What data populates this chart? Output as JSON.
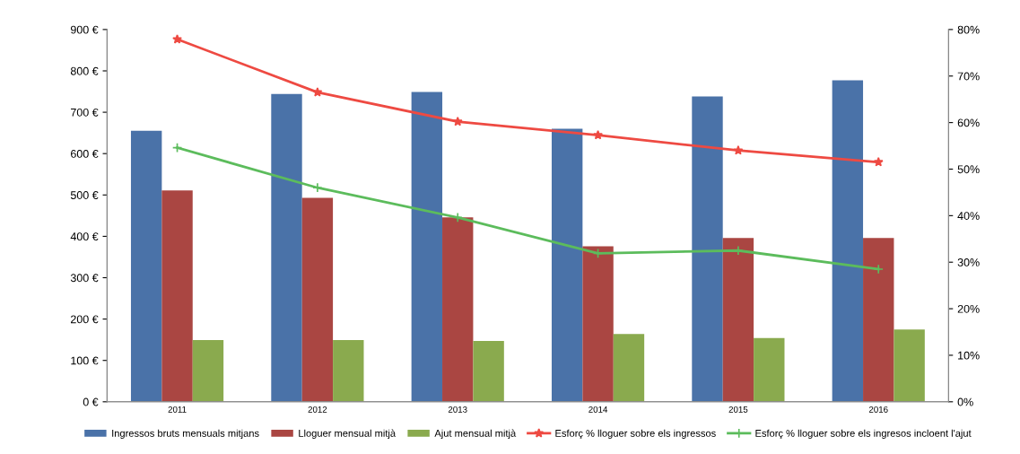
{
  "chart_data": {
    "type": "bar",
    "categories": [
      "2011",
      "2012",
      "2013",
      "2014",
      "2015",
      "2016"
    ],
    "series": [
      {
        "name": "Ingressos bruts mensuals mitjans",
        "color": "#4a72a8",
        "values": [
          655,
          744,
          749,
          660,
          738,
          777
        ]
      },
      {
        "name": "Lloguer mensual mitjà",
        "color": "#aa4642",
        "values": [
          511,
          493,
          446,
          376,
          396,
          396
        ]
      },
      {
        "name": "Ajut mensual mitjà",
        "color": "#8aaa4e",
        "values": [
          149,
          149,
          147,
          164,
          154,
          175
        ]
      },
      {
        "name": "Esforç % lloguer sobre els ingressos",
        "type": "line",
        "axis": "y2",
        "marker": "star",
        "color": "#ee4a42",
        "values": [
          77.9,
          66.5,
          60.2,
          57.3,
          54.0,
          51.5
        ]
      },
      {
        "name": "Esforç % lloguer sobre els ingresos incloent l'ajut",
        "type": "line",
        "axis": "y2",
        "marker": "cross",
        "color": "#5cbc5c",
        "values": [
          54.6,
          46.0,
          39.6,
          31.9,
          32.5,
          28.5
        ]
      }
    ],
    "ylim": [
      0,
      900
    ],
    "yticks": [
      {
        "value": 0,
        "label": "0 €"
      },
      {
        "value": 100,
        "label": "100 €"
      },
      {
        "value": 200,
        "label": "200 €"
      },
      {
        "value": 300,
        "label": "300 €"
      },
      {
        "value": 400,
        "label": "400 €"
      },
      {
        "value": 500,
        "label": "500 €"
      },
      {
        "value": 600,
        "label": "600 €"
      },
      {
        "value": 700,
        "label": "700 €"
      },
      {
        "value": 800,
        "label": "800 €"
      },
      {
        "value": 900,
        "label": "900 €"
      }
    ],
    "y2lim": [
      0,
      80
    ],
    "y2ticks": [
      {
        "value": 0,
        "label": "0%"
      },
      {
        "value": 10,
        "label": "10%"
      },
      {
        "value": 20,
        "label": "20%"
      },
      {
        "value": 30,
        "label": "30%"
      },
      {
        "value": 40,
        "label": "40%"
      },
      {
        "value": 50,
        "label": "50%"
      },
      {
        "value": 60,
        "label": "60%"
      },
      {
        "value": 70,
        "label": "70%"
      },
      {
        "value": 80,
        "label": "80%"
      }
    ],
    "grid": false,
    "legend": "bottom"
  }
}
